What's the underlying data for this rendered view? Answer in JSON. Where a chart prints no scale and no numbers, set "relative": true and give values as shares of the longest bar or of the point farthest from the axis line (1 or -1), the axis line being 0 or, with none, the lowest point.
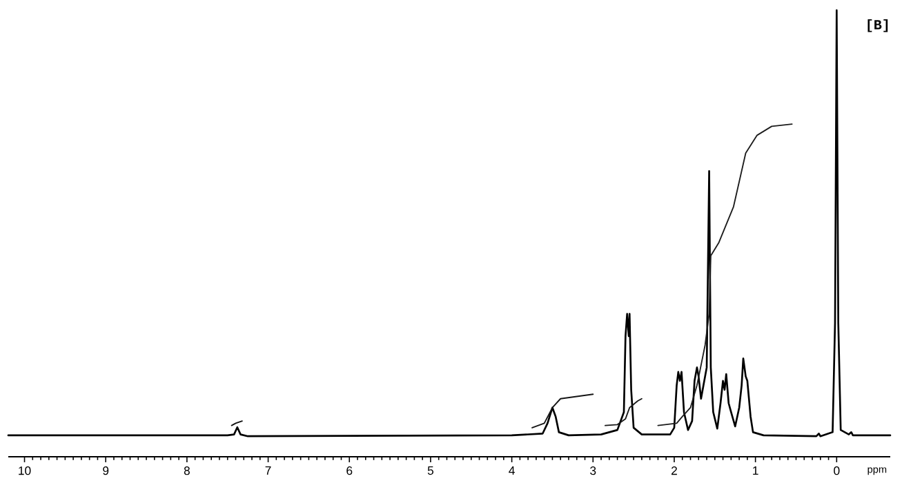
{
  "chart_data": {
    "type": "line",
    "xlabel": "ppm",
    "annotations": [
      "[B]"
    ],
    "relative": true,
    "marker": "none",
    "line_style": "solid",
    "xlim": [
      10.2,
      -0.66
    ],
    "xticks": [
      10,
      9,
      8,
      7,
      6,
      5,
      4,
      3,
      2,
      1,
      0
    ],
    "series": [
      {
        "color": "#000000",
        "x": [
          10.2,
          7.5,
          7.42,
          7.38,
          7.34,
          7.25,
          4.0,
          3.62,
          3.56,
          3.5,
          3.46,
          3.42,
          3.3,
          2.9,
          2.7,
          2.62,
          2.6,
          2.58,
          2.56,
          2.55,
          2.53,
          2.5,
          2.4,
          2.05,
          2.0,
          1.97,
          1.95,
          1.93,
          1.91,
          1.88,
          1.83,
          1.78,
          1.75,
          1.72,
          1.7,
          1.67,
          1.64,
          1.6,
          1.57,
          1.55,
          1.52,
          1.47,
          1.43,
          1.4,
          1.38,
          1.36,
          1.33,
          1.3,
          1.25,
          1.2,
          1.17,
          1.15,
          1.12,
          1.1,
          1.06,
          1.03,
          0.9,
          0.25,
          0.22,
          0.2,
          0.05,
          0.02,
          0.0,
          -0.02,
          -0.05,
          -0.15,
          -0.18,
          -0.2,
          -0.66
        ],
        "values": [
          0.048,
          0.048,
          0.05,
          0.066,
          0.05,
          0.046,
          0.048,
          0.052,
          0.075,
          0.11,
          0.09,
          0.055,
          0.048,
          0.05,
          0.06,
          0.1,
          0.27,
          0.32,
          0.27,
          0.32,
          0.15,
          0.065,
          0.05,
          0.05,
          0.065,
          0.16,
          0.19,
          0.17,
          0.19,
          0.1,
          0.06,
          0.08,
          0.17,
          0.2,
          0.18,
          0.13,
          0.16,
          0.2,
          0.64,
          0.2,
          0.1,
          0.063,
          0.12,
          0.17,
          0.15,
          0.185,
          0.12,
          0.1,
          0.068,
          0.11,
          0.16,
          0.22,
          0.18,
          0.17,
          0.09,
          0.055,
          0.048,
          0.046,
          0.052,
          0.046,
          0.055,
          0.3,
          1.0,
          0.3,
          0.06,
          0.05,
          0.055,
          0.048,
          0.048
        ]
      },
      {
        "color": "#101010",
        "x": [
          7.45,
          7.4,
          7.32
        ],
        "values": [
          0.07,
          0.075,
          0.08
        ]
      },
      {
        "color": "#141414",
        "x": [
          3.75,
          3.6,
          3.5,
          3.4,
          3.2,
          3.0
        ],
        "values": [
          0.065,
          0.075,
          0.11,
          0.13,
          0.135,
          0.14
        ]
      },
      {
        "color": "#181818",
        "x": [
          2.85,
          2.7,
          2.6,
          2.55,
          2.45,
          2.4
        ],
        "values": [
          0.07,
          0.072,
          0.085,
          0.11,
          0.125,
          0.13
        ]
      },
      {
        "color": "#1c1c1c",
        "x": [
          2.2,
          1.97,
          1.9,
          1.8,
          1.72,
          1.62,
          1.57,
          1.55,
          1.45,
          1.27,
          1.12,
          1.05,
          0.98,
          0.8,
          0.55
        ],
        "values": [
          0.07,
          0.075,
          0.09,
          0.11,
          0.16,
          0.25,
          0.32,
          0.45,
          0.48,
          0.56,
          0.68,
          0.7,
          0.72,
          0.74,
          0.745
        ]
      }
    ]
  }
}
